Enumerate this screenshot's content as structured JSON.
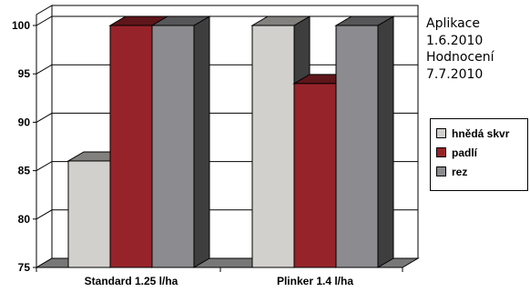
{
  "chart_data": {
    "type": "bar",
    "categories": [
      "Standard 1.25 l/ha",
      "Plinker 1.4 l/ha"
    ],
    "series": [
      {
        "name": "hnědá skvr",
        "values": [
          86,
          100
        ],
        "color": "#d2d0cc"
      },
      {
        "name": "padlí",
        "values": [
          100,
          94
        ],
        "color": "#97232a"
      },
      {
        "name": "rez",
        "values": [
          100,
          100
        ],
        "color": "#8b8b90"
      }
    ],
    "ylim": [
      75,
      100
    ],
    "yticks": [
      "75",
      "80",
      "85",
      "90",
      "95",
      "100"
    ],
    "grid": true,
    "legend_position": "right",
    "three_d": true
  },
  "annotation": {
    "lines": [
      "Aplikace",
      "1.6.2010",
      "Hodnocení",
      "7.7.2010"
    ]
  }
}
